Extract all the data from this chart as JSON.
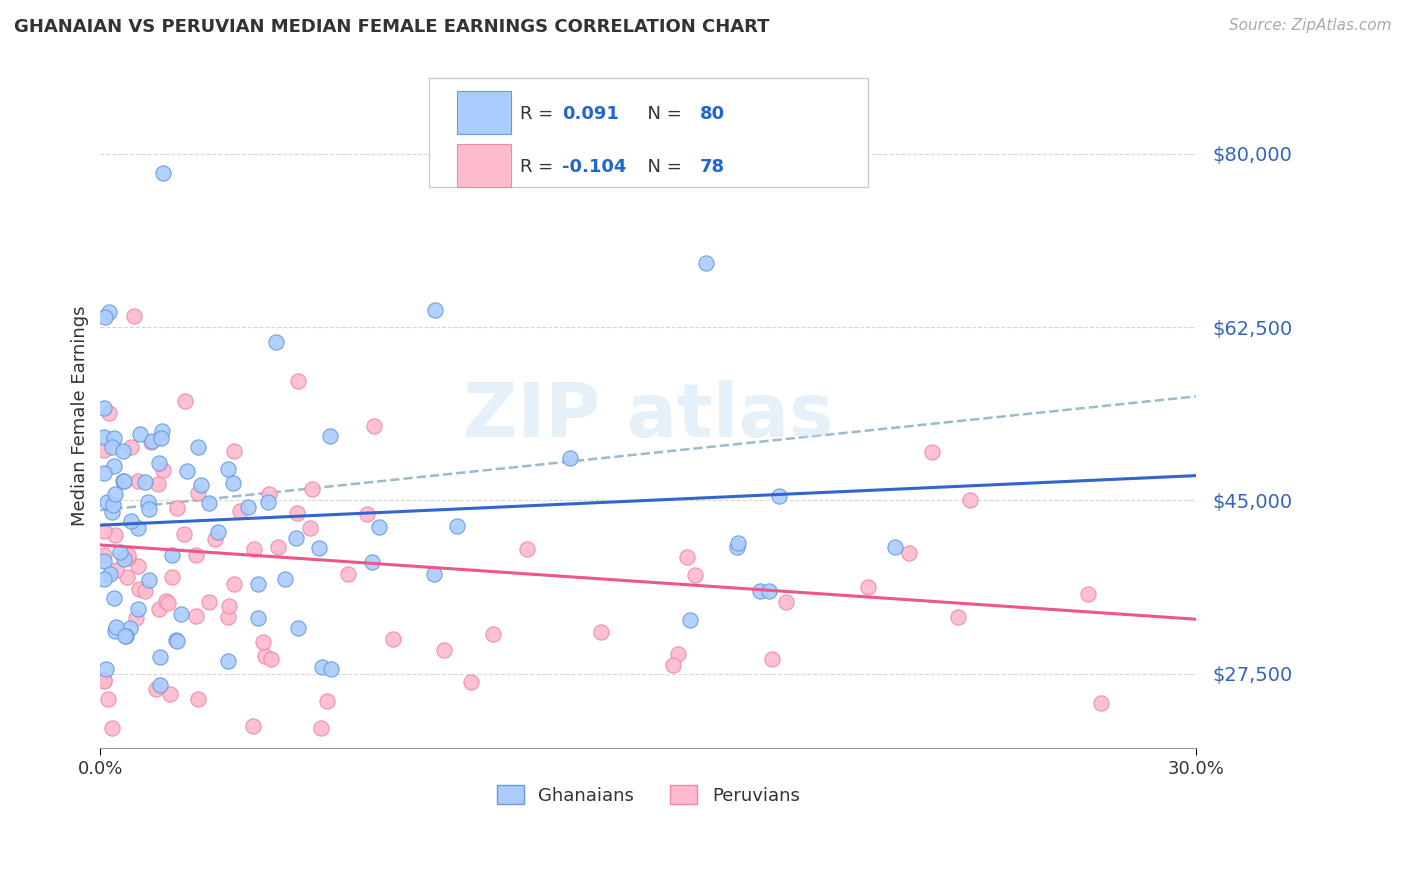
{
  "title": "GHANAIAN VS PERUVIAN MEDIAN FEMALE EARNINGS CORRELATION CHART",
  "source": "Source: ZipAtlas.com",
  "ylabel": "Median Female Earnings",
  "xlim": [
    0.0,
    0.3
  ],
  "ylim": [
    20000,
    87000
  ],
  "yticks": [
    27500,
    45000,
    62500,
    80000
  ],
  "xticks": [
    0.0,
    0.3
  ],
  "xtick_labels": [
    "0.0%",
    "30.0%"
  ],
  "background_color": "#ffffff",
  "grid_color": "#cccccc",
  "ghanaian_fill": "#aaccff",
  "ghanaian_edge": "#6699dd",
  "peruvian_fill": "#ffbbcc",
  "peruvian_edge": "#ee88aa",
  "blue_line_color": "#3366cc",
  "pink_line_color": "#ee5588",
  "dashed_line_color": "#99bbcc",
  "R_ghanaian": 0.091,
  "N_ghanaian": 80,
  "R_peruvian": -0.104,
  "N_peruvian": 78,
  "blue_line_y0": 42500,
  "blue_line_y1": 47500,
  "pink_line_y0": 40500,
  "pink_line_y1": 33000,
  "dash_line_y0": 44000,
  "dash_line_y1": 55500
}
